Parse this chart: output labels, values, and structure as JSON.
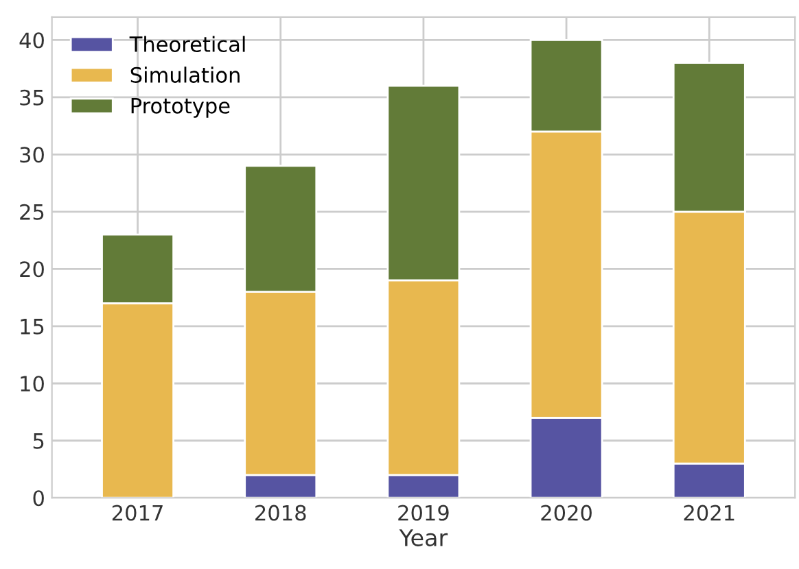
{
  "chart_data": {
    "type": "bar",
    "stacked": true,
    "xlabel": "Year",
    "categories": [
      "2017",
      "2018",
      "2019",
      "2020",
      "2021"
    ],
    "series": [
      {
        "name": "Theoretical",
        "color": "#5654a2",
        "values": [
          0,
          2,
          2,
          7,
          3
        ]
      },
      {
        "name": "Simulation",
        "color": "#e8b84f",
        "values": [
          17,
          16,
          17,
          25,
          22
        ]
      },
      {
        "name": "Prototype",
        "color": "#627b38",
        "values": [
          6,
          11,
          17,
          8,
          13
        ]
      }
    ],
    "ylim": [
      0,
      42
    ],
    "yticks": [
      0,
      5,
      10,
      15,
      20,
      25,
      30,
      35,
      40
    ],
    "grid": true,
    "legend": "top left"
  }
}
